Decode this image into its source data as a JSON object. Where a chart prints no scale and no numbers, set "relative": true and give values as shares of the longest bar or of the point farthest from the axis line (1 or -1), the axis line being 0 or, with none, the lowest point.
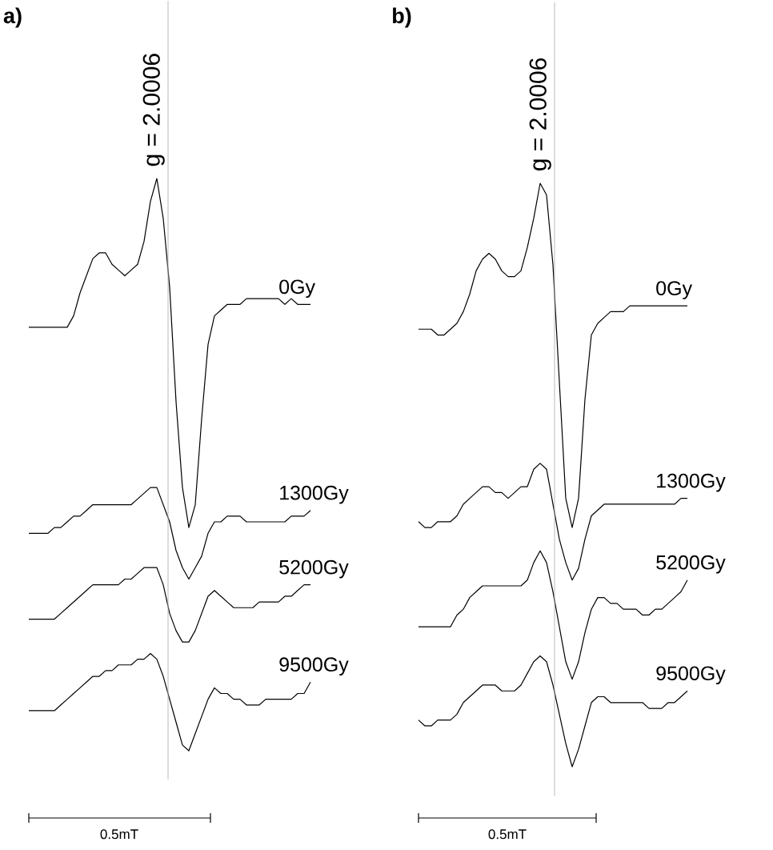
{
  "chart_data": [
    {
      "type": "line",
      "title": "a)",
      "relative": true,
      "categories": [
        null,
        null,
        null,
        null,
        null,
        null,
        null,
        null,
        null,
        null,
        null,
        null,
        null,
        null,
        null,
        null,
        null,
        null,
        null,
        null,
        null,
        null,
        null,
        null,
        null,
        null,
        null,
        null,
        null,
        null,
        null,
        null,
        null,
        null,
        null,
        null,
        null,
        null,
        null,
        null,
        null,
        null,
        null,
        null,
        null
      ],
      "series": [
        {
          "name": "0Gy",
          "color": "#000000",
          "values": [
            0.74,
            0.74,
            0.74,
            0.74,
            0.74,
            0.74,
            0.74,
            0.76,
            0.8,
            0.83,
            0.86,
            0.87,
            0.87,
            0.85,
            0.84,
            0.83,
            0.84,
            0.85,
            0.89,
            0.96,
            1.0,
            0.93,
            0.81,
            0.61,
            0.46,
            0.39,
            0.43,
            0.58,
            0.71,
            0.76,
            0.77,
            0.78,
            0.78,
            0.78,
            0.79,
            0.79,
            0.79,
            0.79,
            0.79,
            0.79,
            0.78,
            0.79,
            0.78,
            0.78,
            0.78
          ]
        },
        {
          "name": "1300Gy",
          "color": "#000000",
          "values": [
            0.38,
            0.38,
            0.38,
            0.38,
            0.39,
            0.39,
            0.4,
            0.41,
            0.41,
            0.42,
            0.43,
            0.43,
            0.43,
            0.43,
            0.43,
            0.43,
            0.43,
            0.44,
            0.45,
            0.46,
            0.46,
            0.43,
            0.4,
            0.35,
            0.32,
            0.3,
            0.32,
            0.34,
            0.38,
            0.4,
            0.4,
            0.41,
            0.41,
            0.41,
            0.4,
            0.4,
            0.4,
            0.4,
            0.4,
            0.4,
            0.4,
            0.41,
            0.41,
            0.41,
            0.42
          ]
        },
        {
          "name": "5200Gy",
          "color": "#000000",
          "values": [
            0.23,
            0.23,
            0.23,
            0.23,
            0.23,
            0.24,
            0.25,
            0.26,
            0.27,
            0.28,
            0.29,
            0.29,
            0.29,
            0.29,
            0.29,
            0.3,
            0.3,
            0.31,
            0.32,
            0.32,
            0.32,
            0.29,
            0.24,
            0.21,
            0.19,
            0.19,
            0.21,
            0.24,
            0.27,
            0.28,
            0.27,
            0.26,
            0.25,
            0.25,
            0.25,
            0.25,
            0.26,
            0.26,
            0.26,
            0.26,
            0.27,
            0.27,
            0.28,
            0.29,
            0.29
          ]
        },
        {
          "name": "9500Gy",
          "color": "#000000",
          "values": [
            0.07,
            0.07,
            0.07,
            0.07,
            0.07,
            0.08,
            0.09,
            0.1,
            0.11,
            0.12,
            0.13,
            0.13,
            0.14,
            0.14,
            0.15,
            0.15,
            0.15,
            0.16,
            0.16,
            0.17,
            0.16,
            0.13,
            0.09,
            0.05,
            0.01,
            0,
            0.03,
            0.06,
            0.09,
            0.11,
            0.1,
            0.1,
            0.09,
            0.09,
            0.08,
            0.08,
            0.08,
            0.09,
            0.09,
            0.09,
            0.09,
            0.09,
            0.1,
            0.1,
            0.12
          ]
        }
      ],
      "annotations": [
        "g = 2.0006",
        "0.5mT"
      ]
    },
    {
      "type": "line",
      "title": "b)",
      "relative": true,
      "categories": [
        null,
        null,
        null,
        null,
        null,
        null,
        null,
        null,
        null,
        null,
        null,
        null,
        null,
        null,
        null,
        null,
        null,
        null,
        null,
        null,
        null,
        null,
        null,
        null,
        null,
        null,
        null,
        null,
        null,
        null,
        null,
        null,
        null,
        null,
        null,
        null,
        null,
        null,
        null,
        null,
        null,
        null,
        null
      ],
      "series": [
        {
          "name": "0Gy",
          "color": "#000000",
          "values": [
            0.75,
            0.75,
            0.75,
            0.74,
            0.74,
            0.75,
            0.76,
            0.78,
            0.81,
            0.85,
            0.87,
            0.88,
            0.87,
            0.85,
            0.84,
            0.84,
            0.85,
            0.89,
            0.94,
            1.0,
            0.98,
            0.86,
            0.66,
            0.46,
            0.41,
            0.46,
            0.63,
            0.74,
            0.76,
            0.77,
            0.78,
            0.78,
            0.78,
            0.79,
            0.79,
            0.79,
            0.79,
            0.79,
            0.79,
            0.79,
            0.79,
            0.79,
            0.79
          ]
        },
        {
          "name": "1300Gy",
          "color": "#000000",
          "values": [
            0.42,
            0.41,
            0.41,
            0.42,
            0.42,
            0.42,
            0.43,
            0.45,
            0.46,
            0.47,
            0.48,
            0.48,
            0.47,
            0.47,
            0.46,
            0.47,
            0.48,
            0.48,
            0.51,
            0.52,
            0.51,
            0.45,
            0.39,
            0.35,
            0.32,
            0.34,
            0.39,
            0.43,
            0.44,
            0.45,
            0.45,
            0.45,
            0.45,
            0.45,
            0.45,
            0.45,
            0.45,
            0.45,
            0.45,
            0.45,
            0.45,
            0.46,
            0.46
          ]
        },
        {
          "name": "5200Gy",
          "color": "#000000",
          "values": [
            0.24,
            0.24,
            0.24,
            0.24,
            0.24,
            0.24,
            0.26,
            0.27,
            0.29,
            0.3,
            0.31,
            0.31,
            0.31,
            0.31,
            0.31,
            0.31,
            0.31,
            0.32,
            0.35,
            0.37,
            0.35,
            0.3,
            0.24,
            0.18,
            0.15,
            0.18,
            0.23,
            0.27,
            0.29,
            0.29,
            0.28,
            0.28,
            0.27,
            0.27,
            0.27,
            0.26,
            0.26,
            0.27,
            0.27,
            0.28,
            0.29,
            0.3,
            0.32
          ]
        },
        {
          "name": "9500Gy",
          "color": "#000000",
          "values": [
            0.08,
            0.07,
            0.07,
            0.08,
            0.08,
            0.08,
            0.09,
            0.11,
            0.12,
            0.13,
            0.14,
            0.14,
            0.14,
            0.13,
            0.13,
            0.13,
            0.14,
            0.16,
            0.18,
            0.19,
            0.18,
            0.14,
            0.09,
            0.04,
            0,
            0.03,
            0.07,
            0.11,
            0.12,
            0.12,
            0.11,
            0.11,
            0.11,
            0.11,
            0.11,
            0.11,
            0.1,
            0.1,
            0.1,
            0.11,
            0.11,
            0.12,
            0.13
          ]
        }
      ],
      "annotations": [
        "g = 2.0006",
        "0.5mT"
      ]
    }
  ]
}
